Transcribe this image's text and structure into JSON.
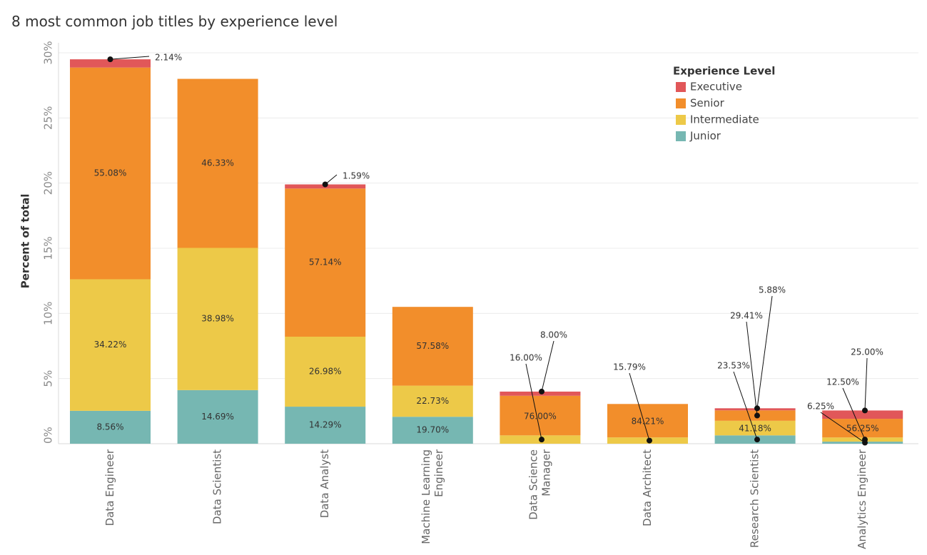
{
  "colors": {
    "Executive": "#e15759",
    "Senior": "#f28e2b",
    "Intermediate": "#edc948",
    "Junior": "#76b7b2",
    "grid": "#ececec",
    "axis": "#d9d9d9"
  },
  "chart_data": {
    "type": "bar",
    "stacked": true,
    "title": "8 most common job titles by experience level",
    "ylabel": "Percent of total",
    "xlabel": "",
    "ylim": [
      0,
      30
    ],
    "yticks": [
      "0%",
      "5%",
      "10%",
      "15%",
      "20%",
      "25%",
      "30%"
    ],
    "grid": true,
    "legend": {
      "title": "Experience Level",
      "position": "top-right",
      "entries": [
        "Executive",
        "Senior",
        "Intermediate",
        "Junior"
      ]
    },
    "categories": [
      [
        "Data Engineer"
      ],
      [
        "Data Scientist"
      ],
      [
        "Data Analyst"
      ],
      [
        "Machine Learning",
        "Engineer"
      ],
      [
        "Data Science",
        "Manager"
      ],
      [
        "Data Architect"
      ],
      [
        "Research Scientist"
      ],
      [
        "Analytics Engineer"
      ]
    ],
    "totals": [
      29.5,
      28.0,
      19.9,
      10.5,
      4.0,
      3.05,
      2.72,
      2.55
    ],
    "series": [
      {
        "name": "Junior",
        "shares": [
          8.56,
          14.69,
          14.29,
          19.7,
          0,
          0,
          23.53,
          6.25
        ],
        "labels": [
          "8.56%",
          "14.69%",
          "14.29%",
          "19.70%",
          "",
          "",
          "23.53%",
          "6.25%"
        ]
      },
      {
        "name": "Intermediate",
        "shares": [
          34.22,
          38.98,
          26.98,
          22.73,
          16.0,
          15.79,
          41.18,
          12.5
        ],
        "labels": [
          "34.22%",
          "38.98%",
          "26.98%",
          "22.73%",
          "16.00%",
          "15.79%",
          "41.18%",
          "12.50%"
        ]
      },
      {
        "name": "Senior",
        "shares": [
          55.08,
          46.33,
          57.14,
          57.58,
          76.0,
          84.21,
          29.41,
          56.25
        ],
        "labels": [
          "55.08%",
          "46.33%",
          "57.14%",
          "57.58%",
          "76.00%",
          "84.21%",
          "29.41%",
          "56.25%"
        ]
      },
      {
        "name": "Executive",
        "shares": [
          2.14,
          0,
          1.59,
          0,
          8.0,
          0,
          5.88,
          25.0
        ],
        "labels": [
          "2.14%",
          "",
          "1.59%",
          "",
          "8.00%",
          "",
          "5.88%",
          "25.00%"
        ]
      }
    ]
  }
}
